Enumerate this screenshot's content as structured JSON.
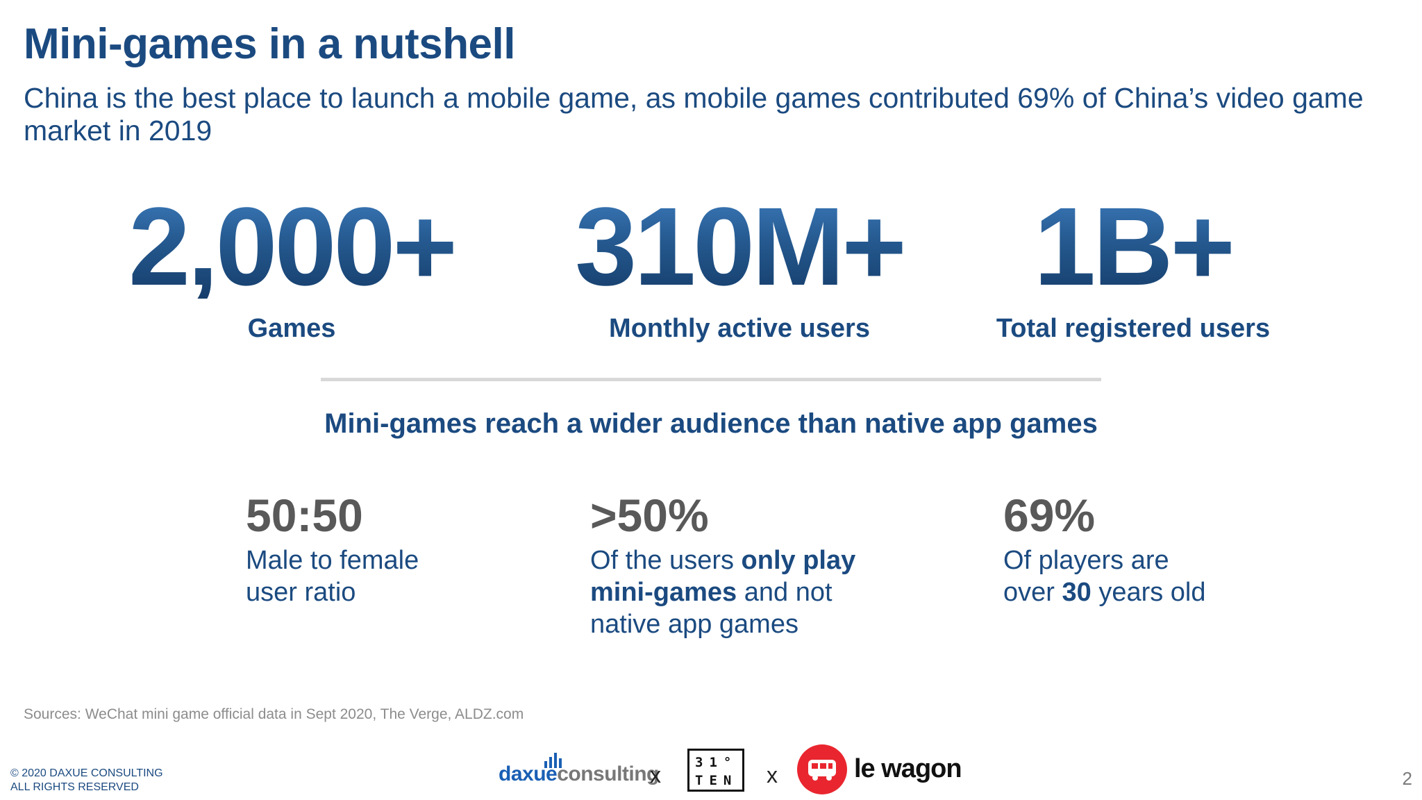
{
  "slide": {
    "title": "Mini-games in a nutshell",
    "subtitle": "China is the best place to launch a mobile game, as mobile games contributed 69% of China’s video game market in 2019",
    "page_number": "2"
  },
  "headline_stats": [
    {
      "value": "2,000+",
      "label": "Games"
    },
    {
      "value": "310M+",
      "label": "Monthly active users"
    },
    {
      "value": "1B+",
      "label": "Total registered users"
    }
  ],
  "section_heading": "Mini-games reach a wider audience than native app games",
  "detail_stats": [
    {
      "value": "50:50",
      "line1": "Male to female",
      "line2": "user ratio"
    },
    {
      "value": ">50%",
      "line1_a": "Of the users ",
      "line1_b": "only play",
      "line2_a": "mini-games",
      "line2_b": " and not",
      "line3": "native app games"
    },
    {
      "value": "69%",
      "line1": "Of players are",
      "line2_a": "over ",
      "line2_b": "30",
      "line2_c": " years old"
    }
  ],
  "sources": "Sources: WeChat mini game official data in Sept 2020, The Verge, ALDZ.com",
  "footer": {
    "copyright_line1": "© 2020 DAXUE CONSULTING",
    "copyright_line2": "ALL RIGHTS RESERVED",
    "partner_daxue_a": "daxue",
    "partner_daxue_b": "consulting",
    "separator": "x",
    "partner_31ten_row1": "31°",
    "partner_31ten_row2": "TEN",
    "partner_wagon": "le wagon"
  },
  "colors": {
    "title_blue": "#1b4a80",
    "stat_gray": "#595959",
    "wagon_red": "#e9262f",
    "daxue_blue": "#1a5fb4"
  }
}
